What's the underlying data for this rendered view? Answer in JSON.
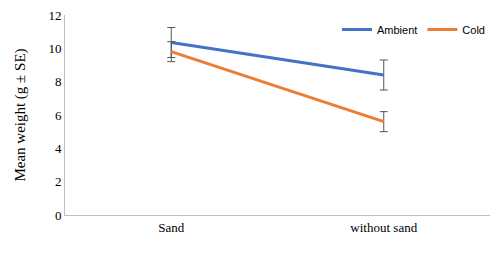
{
  "chart_data": {
    "type": "line",
    "y_label": "Mean weight (g ± SE)",
    "categories": [
      "Sand",
      "without sand"
    ],
    "series": [
      {
        "name": "Ambient",
        "color": "#4472c4",
        "values": [
          10.35,
          8.4
        ],
        "errors": [
          0.9,
          0.9
        ]
      },
      {
        "name": "Cold",
        "color": "#ed7d31",
        "values": [
          9.8,
          5.6
        ],
        "errors": [
          0.6,
          0.6
        ]
      }
    ],
    "ylim": [
      0,
      12
    ],
    "yticks": [
      0,
      2,
      4,
      6,
      8,
      10,
      12
    ],
    "grid": false,
    "legend": "top right"
  }
}
